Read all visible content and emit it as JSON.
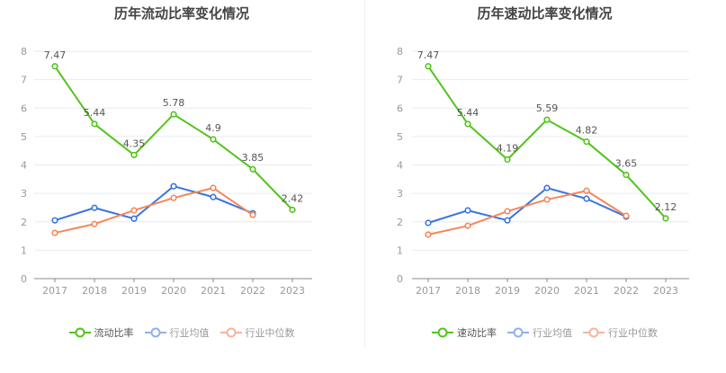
{
  "colors": {
    "primary": "#52c41a",
    "industry_avg": "#3b74e0",
    "industry_median": "#f5875a",
    "legend_avg": "#8fb0f0",
    "legend_median": "#f8b39a",
    "grid": "#e6ebf2",
    "axis": "#999999"
  },
  "chart_data": [
    {
      "type": "line",
      "title": "历年流动比率变化情况",
      "categories": [
        "2017",
        "2018",
        "2019",
        "2020",
        "2021",
        "2022",
        "2023"
      ],
      "y_ticks": [
        "0",
        "1",
        "2",
        "3",
        "4",
        "5",
        "6",
        "7",
        "8"
      ],
      "ylim": [
        0,
        8
      ],
      "grid": true,
      "legend_position": "bottom",
      "series": [
        {
          "name": "流动比率",
          "values": [
            7.47,
            5.44,
            4.35,
            5.78,
            4.9,
            3.85,
            2.42
          ],
          "labels": [
            "7.47",
            "5.44",
            "4.35",
            "5.78",
            "4.9",
            "3.85",
            "2.42"
          ],
          "color_key": "primary"
        },
        {
          "name": "行业均值",
          "values": [
            2.05,
            2.49,
            2.11,
            3.25,
            2.87,
            2.3,
            null
          ],
          "color_key": "industry_avg"
        },
        {
          "name": "行业中位数",
          "values": [
            1.61,
            1.92,
            2.4,
            2.84,
            3.19,
            2.24,
            null
          ],
          "color_key": "industry_median"
        }
      ]
    },
    {
      "type": "line",
      "title": "历年速动比率变化情况",
      "categories": [
        "2017",
        "2018",
        "2019",
        "2020",
        "2021",
        "2022",
        "2023"
      ],
      "y_ticks": [
        "0",
        "1",
        "2",
        "3",
        "4",
        "5",
        "6",
        "7",
        "8"
      ],
      "ylim": [
        0,
        8
      ],
      "grid": true,
      "legend_position": "bottom",
      "series": [
        {
          "name": "速动比率",
          "values": [
            7.47,
            5.44,
            4.19,
            5.59,
            4.82,
            3.65,
            2.12
          ],
          "labels": [
            "7.47",
            "5.44",
            "4.19",
            "5.59",
            "4.82",
            "3.65",
            "2.12"
          ],
          "color_key": "primary"
        },
        {
          "name": "行业均值",
          "values": [
            1.96,
            2.4,
            2.05,
            3.19,
            2.81,
            2.18,
            null
          ],
          "color_key": "industry_avg"
        },
        {
          "name": "行业中位数",
          "values": [
            1.55,
            1.86,
            2.37,
            2.78,
            3.09,
            2.21,
            null
          ],
          "color_key": "industry_median"
        }
      ]
    }
  ]
}
